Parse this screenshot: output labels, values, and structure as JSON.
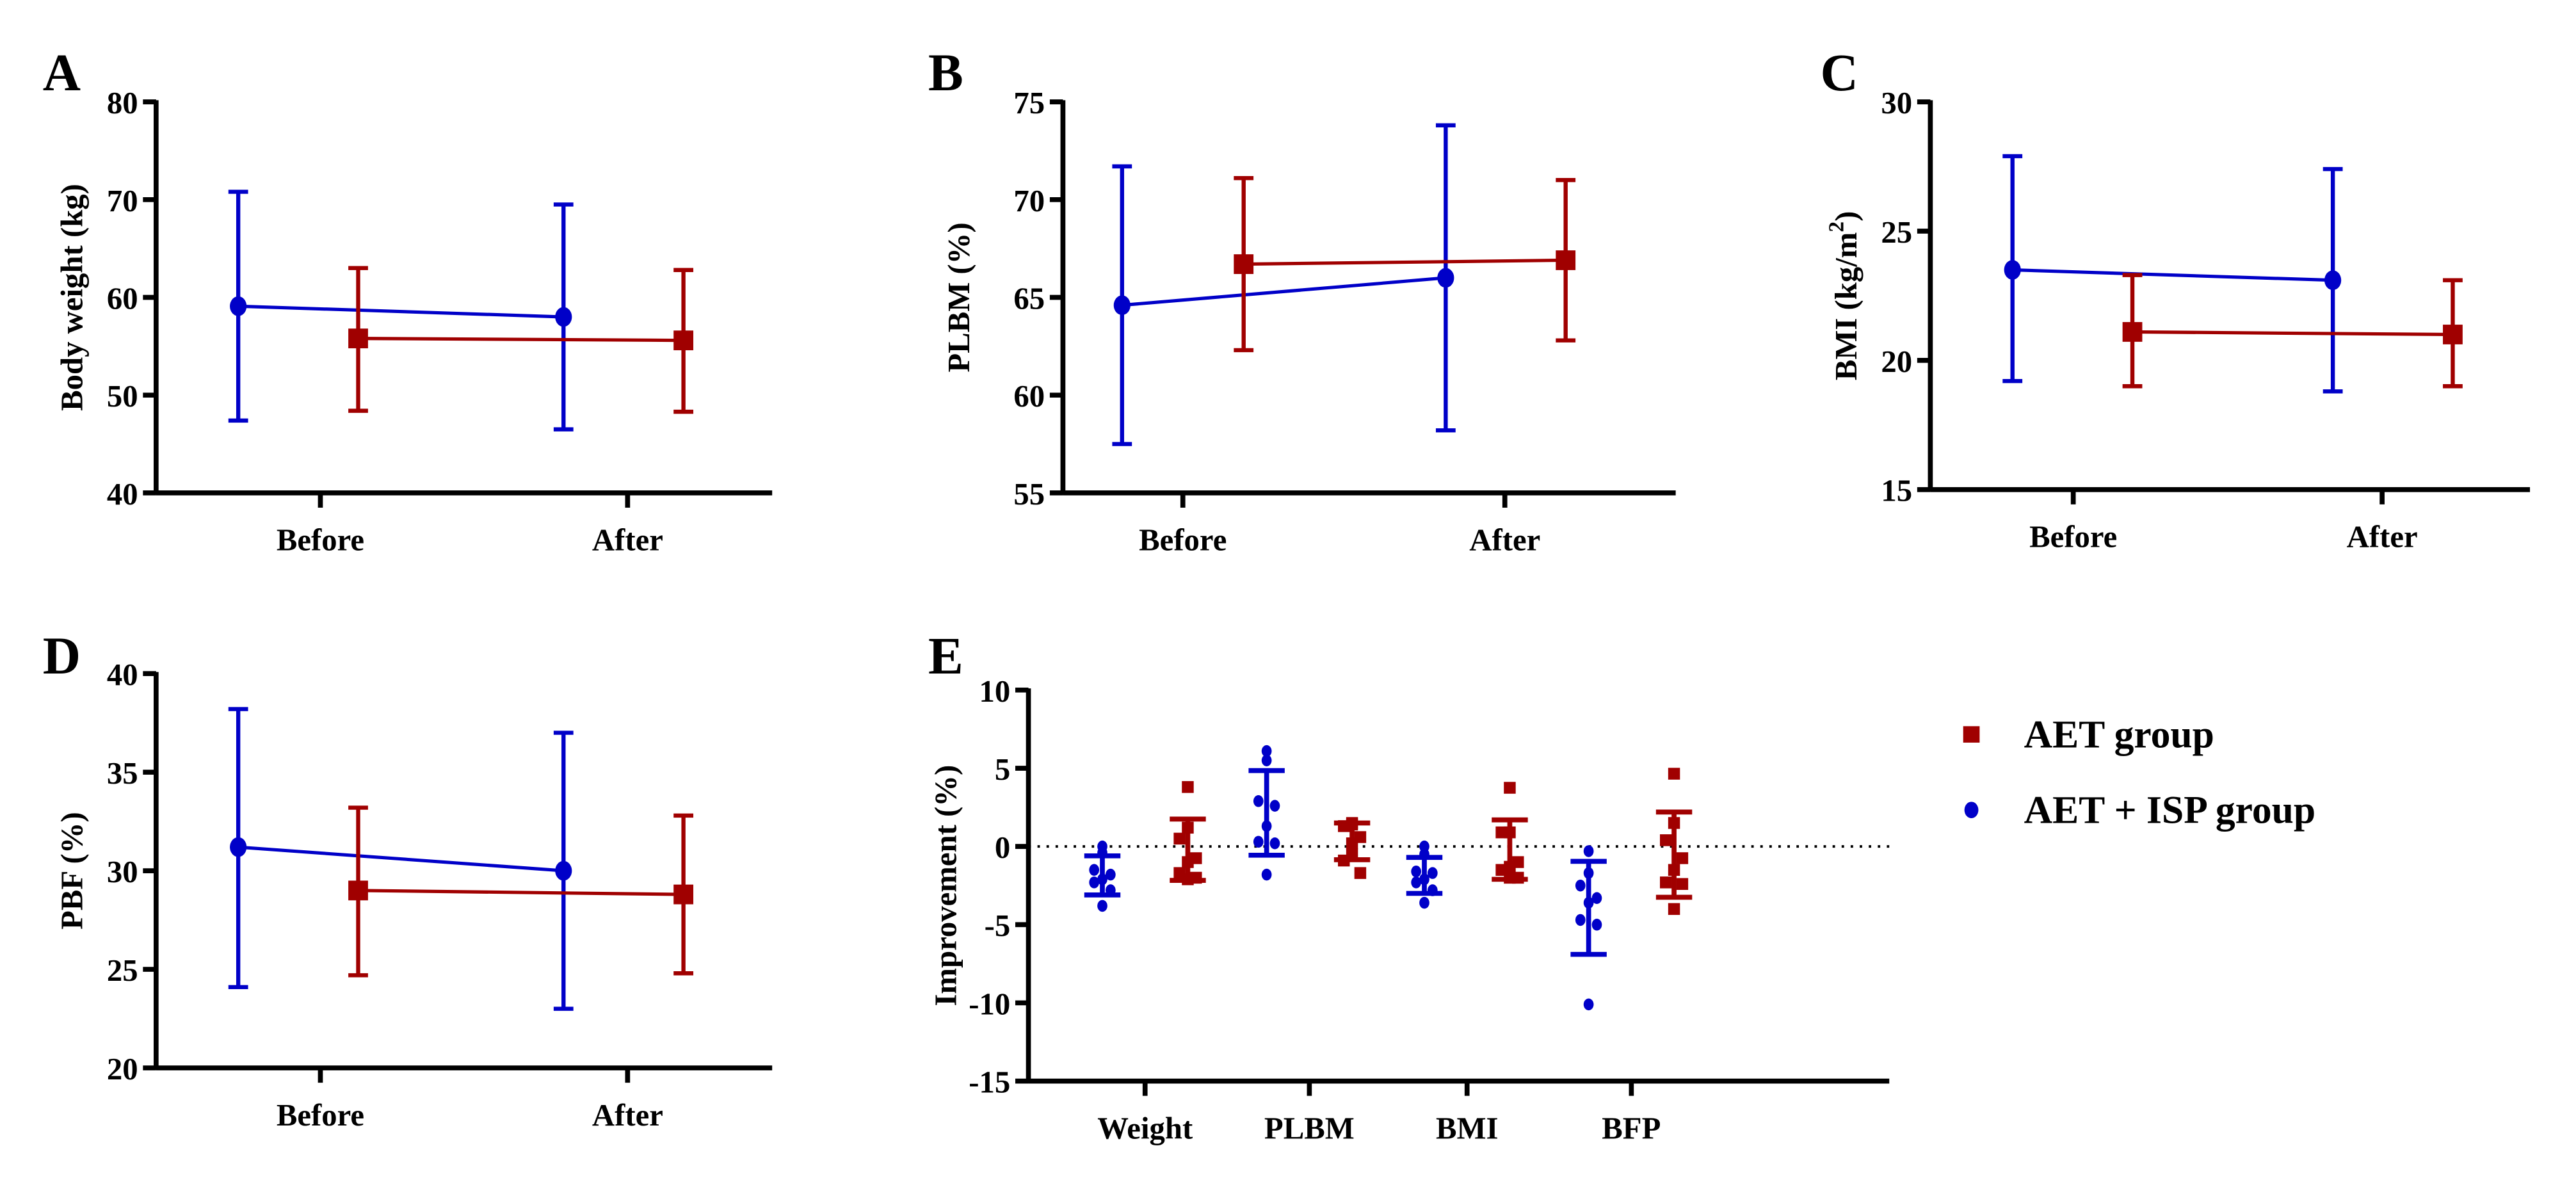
{
  "colors": {
    "aet_isp": "#0000c8",
    "aet": "#a00000",
    "axis": "#000000"
  },
  "legend": {
    "items": [
      {
        "label": "AET group",
        "marker": "square",
        "color": "#a00000"
      },
      {
        "label": "AET + ISP group",
        "marker": "circle",
        "color": "#0000c8"
      }
    ]
  },
  "chart_data": [
    {
      "id": "A",
      "type": "line",
      "panel_label": "A",
      "ylabel": "Body weight (kg)",
      "ylim": [
        40,
        80
      ],
      "yticks": [
        "40",
        "50",
        "60",
        "70",
        "80"
      ],
      "categories": [
        "Before",
        "After"
      ],
      "series": [
        {
          "name": "AET + ISP group",
          "mean": [
            59.1,
            58.0
          ],
          "lower": [
            47.4,
            46.5
          ],
          "upper": [
            70.8,
            69.5
          ]
        },
        {
          "name": "AET group",
          "mean": [
            55.8,
            55.6
          ],
          "lower": [
            48.4,
            48.3
          ],
          "upper": [
            63.0,
            62.8
          ]
        }
      ]
    },
    {
      "id": "B",
      "type": "line",
      "panel_label": "B",
      "ylabel": "PLBM (%)",
      "ylim": [
        55,
        75
      ],
      "yticks": [
        "55",
        "60",
        "65",
        "70",
        "75"
      ],
      "categories": [
        "Before",
        "After"
      ],
      "series": [
        {
          "name": "AET + ISP group",
          "mean": [
            64.6,
            66.0
          ],
          "lower": [
            57.5,
            58.2
          ],
          "upper": [
            71.7,
            73.8
          ]
        },
        {
          "name": "AET group",
          "mean": [
            66.7,
            66.9
          ],
          "lower": [
            62.3,
            62.8
          ],
          "upper": [
            71.1,
            71.0
          ]
        }
      ]
    },
    {
      "id": "C",
      "type": "line",
      "panel_label": "C",
      "ylabel": "BMI (kg/m",
      "ylabel_sup": "2",
      "ylabel_end": ")",
      "ylim": [
        15,
        30
      ],
      "yticks": [
        "15",
        "20",
        "25",
        "30"
      ],
      "categories": [
        "Before",
        "After"
      ],
      "series": [
        {
          "name": "AET + ISP group",
          "mean": [
            23.5,
            23.1
          ],
          "lower": [
            19.2,
            18.8
          ],
          "upper": [
            27.9,
            27.4
          ]
        },
        {
          "name": "AET group",
          "mean": [
            21.1,
            21.0
          ],
          "lower": [
            19.0,
            19.0
          ],
          "upper": [
            23.3,
            23.1
          ]
        }
      ]
    },
    {
      "id": "D",
      "type": "line",
      "panel_label": "D",
      "ylabel": "PBF  (%)",
      "ylim": [
        20,
        40
      ],
      "yticks": [
        "20",
        "25",
        "30",
        "35",
        "40"
      ],
      "categories": [
        "Before",
        "After"
      ],
      "series": [
        {
          "name": "AET + ISP group",
          "mean": [
            31.2,
            30.0
          ],
          "lower": [
            24.1,
            23.0
          ],
          "upper": [
            38.2,
            37.0
          ]
        },
        {
          "name": "AET group",
          "mean": [
            29.0,
            28.8
          ],
          "lower": [
            24.7,
            24.8
          ],
          "upper": [
            33.2,
            32.8
          ]
        }
      ]
    },
    {
      "id": "E",
      "type": "scatter",
      "panel_label": "E",
      "ylabel": "Improvement  (%)",
      "ylim": [
        -15,
        10
      ],
      "yticks": [
        "-15",
        "-10",
        "-5",
        "0",
        "5",
        "10"
      ],
      "reference_line": 0,
      "categories": [
        "Weight",
        "PLBM",
        "BMI",
        "BFP"
      ],
      "series": [
        {
          "name": "AET + ISP group",
          "points": [
            [
              0.0,
              -0.4,
              -1.5,
              -1.8,
              -2.1,
              -2.3,
              -2.8,
              -3.8
            ],
            [
              6.1,
              5.5,
              2.9,
              2.6,
              1.3,
              0.3,
              0.2,
              -1.8
            ],
            [
              0.0,
              -0.5,
              -1.6,
              -1.7,
              -2.1,
              -2.3,
              -2.8,
              -3.6
            ],
            [
              -0.3,
              -1.7,
              -2.5,
              -3.3,
              -3.6,
              -4.7,
              -5.0,
              -10.1
            ]
          ],
          "mean": [
            -1.85,
            2.15,
            -1.85,
            -3.9
          ],
          "lower": [
            -3.1,
            -0.56,
            -3.0,
            -6.9
          ],
          "upper": [
            -0.6,
            4.85,
            -0.7,
            -0.95
          ]
        },
        {
          "name": "AET group",
          "points": [
            [
              3.8,
              1.2,
              0.5,
              -0.75,
              -1.0,
              -1.7,
              -2.0,
              -2.1
            ],
            [
              1.5,
              1.4,
              1.3,
              0.6,
              0.2,
              -0.9,
              -1.7,
              -0.5
            ],
            [
              3.75,
              0.9,
              0.9,
              -1.0,
              -1.3,
              -1.5,
              -2.0,
              -2.0
            ],
            [
              4.65,
              1.5,
              0.4,
              -0.75,
              -1.5,
              -2.3,
              -2.4,
              -4.0
            ]
          ],
          "mean": [
            -0.2,
            0.3,
            -0.2,
            -0.5
          ],
          "lower": [
            -2.17,
            -0.85,
            -2.1,
            -3.25
          ],
          "upper": [
            1.75,
            1.5,
            1.7,
            2.2
          ]
        }
      ]
    }
  ]
}
